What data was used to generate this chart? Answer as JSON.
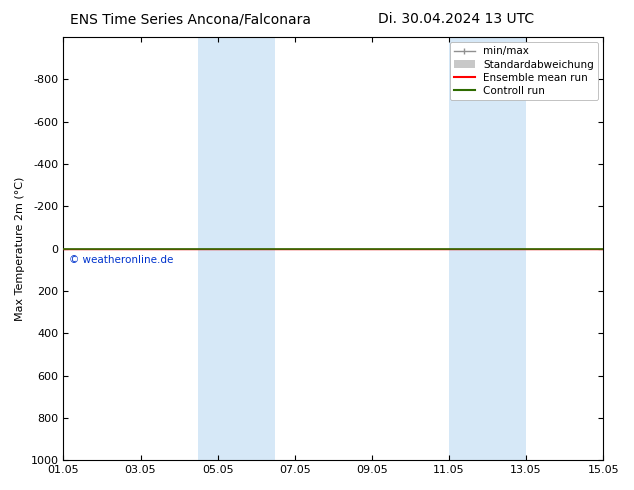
{
  "title_left": "ENS Time Series Ancona/Falconara",
  "title_right": "Di. 30.04.2024 13 UTC",
  "ylabel": "Max Temperature 2m (°C)",
  "watermark": "© weatheronline.de",
  "yticks": [
    -800,
    -600,
    -400,
    -200,
    0,
    200,
    400,
    600,
    800,
    1000
  ],
  "ylim_top": -1000,
  "ylim_bottom": 1000,
  "xtick_labels": [
    "01.05",
    "03.05",
    "05.05",
    "07.05",
    "09.05",
    "11.05",
    "13.05",
    "15.05"
  ],
  "xtick_positions": [
    0,
    2,
    4,
    6,
    8,
    10,
    12,
    14
  ],
  "xmin": 0,
  "xmax": 14,
  "shade_regions": [
    [
      3.5,
      4.5
    ],
    [
      4.5,
      5.5
    ],
    [
      10.0,
      11.0
    ],
    [
      11.0,
      12.0
    ]
  ],
  "shade_color": "#d6e8f7",
  "line_y": 0,
  "ensemble_mean_color": "#ff0000",
  "control_run_color": "#2e6b00",
  "minmax_color": "#909090",
  "stddev_color": "#c8c8c8",
  "bg_color": "#ffffff",
  "legend_items": [
    "min/max",
    "Standardabweichung",
    "Ensemble mean run",
    "Controll run"
  ],
  "legend_colors": [
    "#909090",
    "#c8c8c8",
    "#ff0000",
    "#2e6b00"
  ],
  "title_fontsize": 10,
  "axis_fontsize": 8,
  "legend_fontsize": 7.5
}
